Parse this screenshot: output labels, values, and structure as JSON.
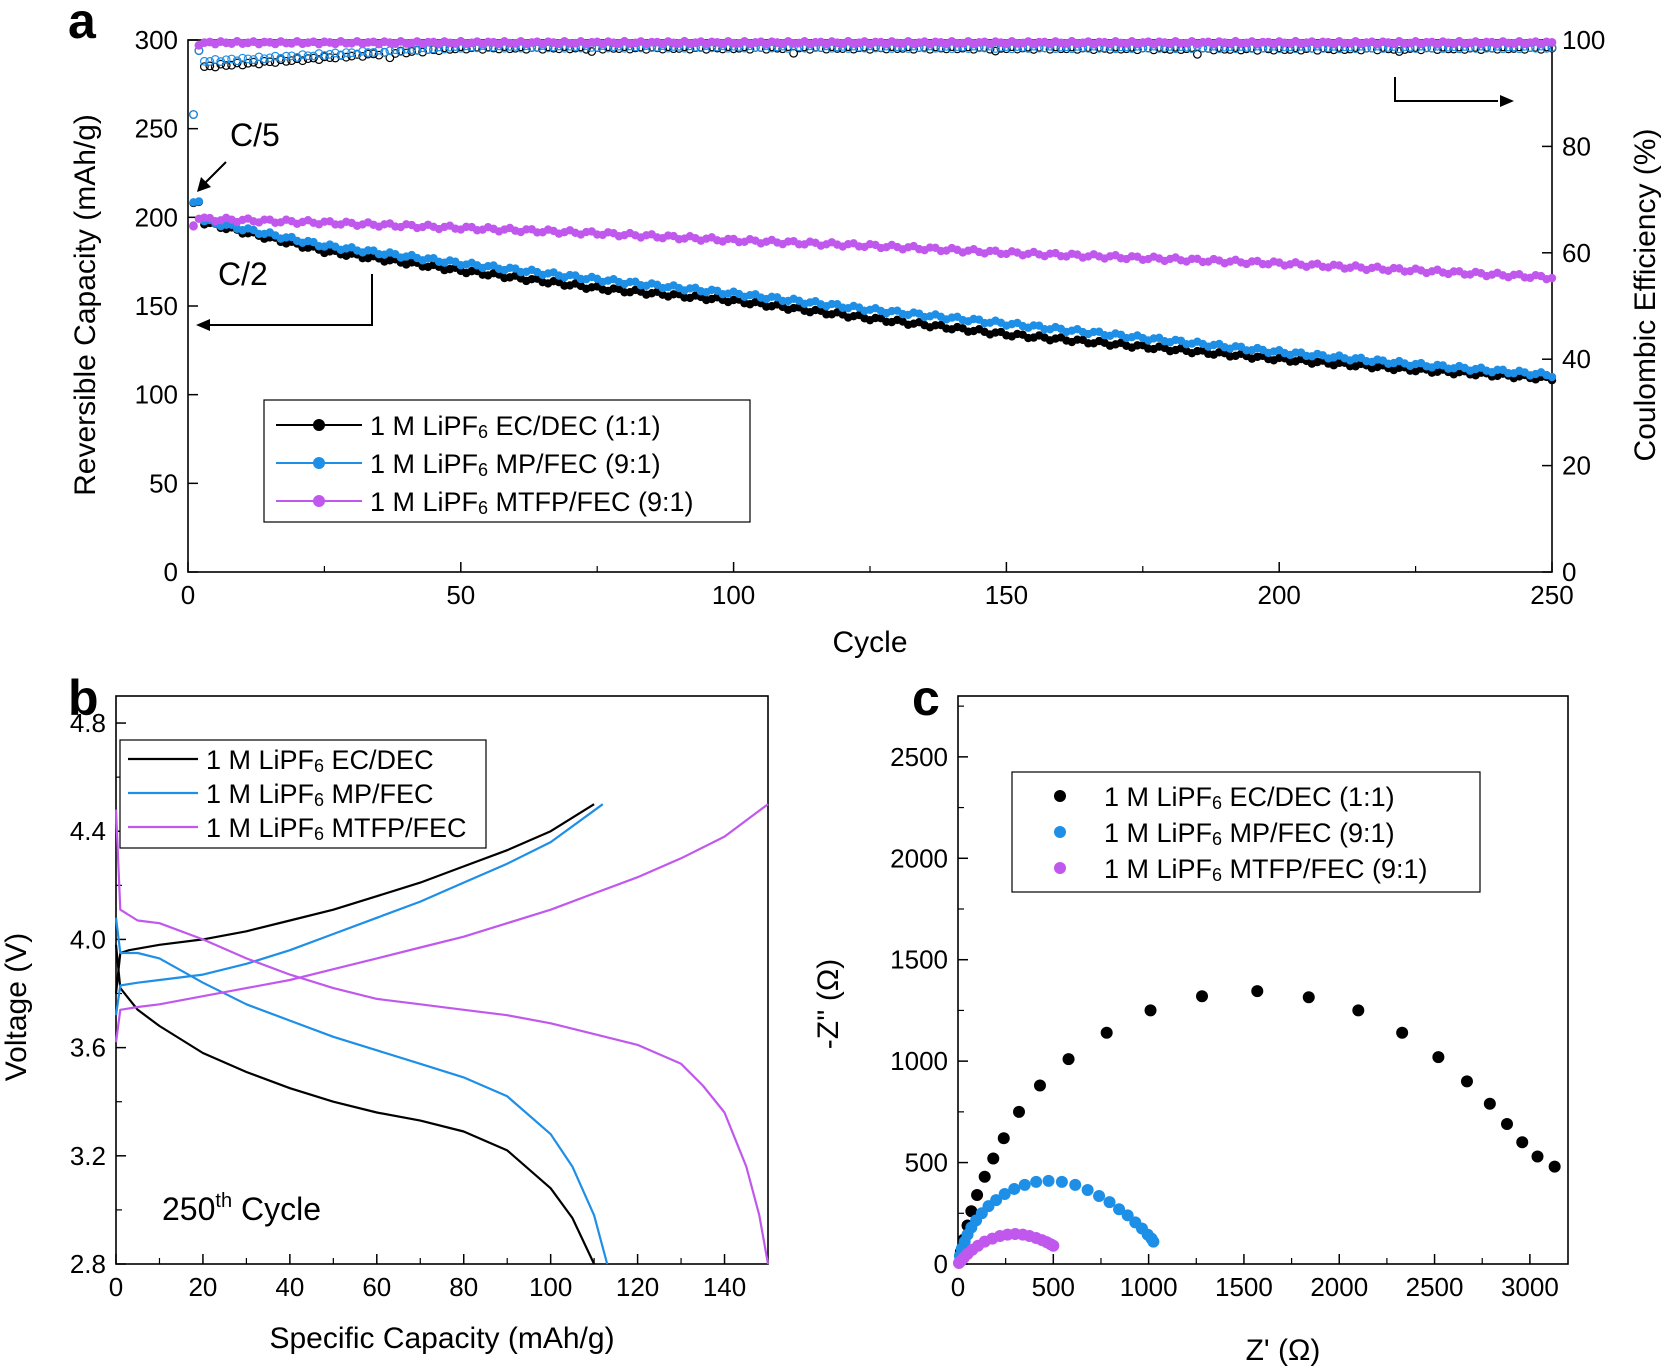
{
  "panel_labels": [
    "a",
    "b",
    "c"
  ],
  "colors": {
    "black": "#000000",
    "blue": "#1E8FE6",
    "purple": "#C158EE"
  },
  "chart_data": [
    {
      "panel": "a",
      "type": "scatter",
      "xlabel": "Cycle",
      "ylabel": "Reversible Capacity (mAh/g)",
      "y2label": "Coulombic Efficiency (%)",
      "xlim": [
        0,
        250
      ],
      "ylim": [
        0,
        300
      ],
      "y2lim": [
        0,
        100
      ],
      "xticks": [
        "0",
        "50",
        "100",
        "150",
        "200",
        "250"
      ],
      "yticks": [
        "0",
        "50",
        "100",
        "150",
        "200",
        "250",
        "300"
      ],
      "y2ticks": [
        "0",
        "20",
        "40",
        "60",
        "80",
        "100"
      ],
      "legend_position": "lower-left",
      "annotations": [
        {
          "text": "C/5",
          "arrow": "points to initial C/5 cycles",
          "axis": "left"
        },
        {
          "text": "C/2",
          "axis": "left"
        },
        {
          "arrow": "left",
          "meaning": "capacity series use left axis"
        },
        {
          "arrow": "right",
          "meaning": "coulombic efficiency uses right axis"
        }
      ],
      "series": [
        {
          "name": "1 M LiPF6 EC/DEC (1:1)",
          "color": "#000000",
          "capacity": {
            "x": [
              1,
              2,
              3,
              25,
              50,
              75,
              100,
              125,
              150,
              175,
              200,
              225,
              250
            ],
            "y": [
              207,
              209,
              197,
              181,
              170,
              160,
              153,
              143,
              134,
              127,
              120,
              114,
              109
            ]
          },
          "coulombic_efficiency": {
            "x": [
              1,
              2,
              3,
              50,
              100,
              150,
              200,
              250
            ],
            "y": [
              86,
              98,
              95,
              98.5,
              98.5,
              98.5,
              98.3,
              98.5
            ]
          }
        },
        {
          "name": "1 M LiPF6 MP/FEC (9:1)",
          "color": "#1E8FE6",
          "capacity": {
            "x": [
              1,
              2,
              3,
              25,
              50,
              75,
              100,
              125,
              150,
              175,
              200,
              225,
              250
            ],
            "y": [
              208,
              210,
              198,
              184,
              174,
              165,
              157,
              148,
              140,
              132,
              124,
              117,
              111
            ]
          },
          "coulombic_efficiency": {
            "x": [
              1,
              2,
              3,
              50,
              100,
              150,
              200,
              250
            ],
            "y": [
              86,
              98,
              96,
              98.7,
              98.7,
              98.6,
              98.6,
              98.6
            ]
          }
        },
        {
          "name": "1 M LiPF6 MTFP/FEC (9:1)",
          "color": "#C158EE",
          "capacity": {
            "x": [
              1,
              2,
              3,
              25,
              50,
              75,
              100,
              125,
              150,
              175,
              200,
              225,
              250
            ],
            "y": [
              196,
              200,
              199,
              197,
              194,
              191,
              187,
              184,
              180,
              177,
              174,
              170,
              166
            ]
          },
          "coulombic_efficiency": {
            "x": [
              1,
              2,
              3,
              50,
              100,
              150,
              200,
              250
            ],
            "y": [
              65,
              99,
              99.5,
              99.5,
              99.5,
              99.5,
              99.5,
              99.5
            ]
          }
        }
      ]
    },
    {
      "panel": "b",
      "type": "line",
      "xlabel": "Specific Capacity (mAh/g)",
      "ylabel": "Voltage (V)",
      "xlim": [
        0,
        150
      ],
      "ylim": [
        2.8,
        4.9
      ],
      "xticks": [
        "0",
        "20",
        "40",
        "60",
        "80",
        "100",
        "120",
        "140"
      ],
      "yticks": [
        "2.8",
        "3.2",
        "3.6",
        "4.0",
        "4.4",
        "4.8"
      ],
      "legend_position": "top-left",
      "annotation": "250",
      "annotation_sup": "th",
      "annotation_tail": "Cycle",
      "series": [
        {
          "name": "1 M LiPF6 EC/DEC",
          "color": "#000000",
          "charge": {
            "x": [
              0,
              1,
              3,
              10,
              20,
              30,
              40,
              50,
              60,
              70,
              80,
              90,
              100,
              110
            ],
            "y": [
              3.8,
              3.95,
              3.96,
              3.98,
              4.0,
              4.03,
              4.07,
              4.11,
              4.16,
              4.21,
              4.27,
              4.33,
              4.4,
              4.5
            ]
          },
          "discharge": {
            "x": [
              0,
              1,
              5,
              10,
              20,
              30,
              40,
              50,
              60,
              70,
              80,
              90,
              100,
              105,
              110
            ],
            "y": [
              3.98,
              3.82,
              3.74,
              3.68,
              3.58,
              3.51,
              3.45,
              3.4,
              3.36,
              3.33,
              3.29,
              3.22,
              3.08,
              2.97,
              2.8
            ]
          }
        },
        {
          "name": "1 M LiPF6 MP/FEC",
          "color": "#1E8FE6",
          "charge": {
            "x": [
              0,
              1,
              5,
              10,
              20,
              30,
              40,
              50,
              60,
              70,
              80,
              90,
              100,
              112
            ],
            "y": [
              3.72,
              3.83,
              3.84,
              3.85,
              3.87,
              3.91,
              3.96,
              4.02,
              4.08,
              4.14,
              4.21,
              4.28,
              4.36,
              4.5
            ]
          },
          "discharge": {
            "x": [
              0,
              1,
              5,
              10,
              20,
              30,
              40,
              50,
              60,
              70,
              80,
              90,
              100,
              105,
              110,
              113
            ],
            "y": [
              4.08,
              3.95,
              3.95,
              3.93,
              3.84,
              3.76,
              3.7,
              3.64,
              3.59,
              3.54,
              3.49,
              3.42,
              3.28,
              3.16,
              2.98,
              2.8
            ]
          }
        },
        {
          "name": "1 M LiPF6 MTFP/FEC",
          "color": "#C158EE",
          "charge": {
            "x": [
              0,
              1,
              5,
              10,
              20,
              30,
              40,
              50,
              60,
              70,
              80,
              90,
              100,
              110,
              120,
              130,
              140,
              150
            ],
            "y": [
              3.62,
              3.74,
              3.75,
              3.76,
              3.79,
              3.82,
              3.85,
              3.89,
              3.93,
              3.97,
              4.01,
              4.06,
              4.11,
              4.17,
              4.23,
              4.3,
              4.38,
              4.5
            ]
          },
          "discharge": {
            "x": [
              0,
              1,
              5,
              10,
              20,
              30,
              40,
              50,
              60,
              70,
              80,
              90,
              100,
              110,
              120,
              130,
              135,
              140,
              145,
              148,
              150
            ],
            "y": [
              4.48,
              4.11,
              4.07,
              4.06,
              4.0,
              3.93,
              3.87,
              3.82,
              3.78,
              3.76,
              3.74,
              3.72,
              3.69,
              3.65,
              3.61,
              3.54,
              3.46,
              3.36,
              3.16,
              2.98,
              2.8
            ]
          }
        }
      ]
    },
    {
      "panel": "c",
      "type": "scatter",
      "xlabel": "Z' (Ω)",
      "ylabel": "-Z'' (Ω)",
      "xlim": [
        0,
        3200
      ],
      "ylim": [
        0,
        2800
      ],
      "xticks": [
        "0",
        "500",
        "1000",
        "1500",
        "2000",
        "2500",
        "3000"
      ],
      "yticks": [
        "0",
        "500",
        "1000",
        "1500",
        "2000",
        "2500"
      ],
      "legend_position": "top-center",
      "series": [
        {
          "name": "1 M LiPF6 EC/DEC (1:1)",
          "color": "#000000",
          "x": [
            15,
            30,
            50,
            70,
            100,
            140,
            185,
            240,
            320,
            430,
            580,
            780,
            1010,
            1280,
            1570,
            1840,
            2100,
            2330,
            2520,
            2670,
            2790,
            2880,
            2960,
            3040,
            3130
          ],
          "y": [
            60,
            120,
            190,
            260,
            340,
            430,
            520,
            620,
            750,
            880,
            1010,
            1140,
            1250,
            1320,
            1345,
            1315,
            1250,
            1140,
            1020,
            900,
            790,
            690,
            600,
            530,
            480
          ]
        },
        {
          "name": "1 M LiPF6 MP/FEC (9:1)",
          "color": "#1E8FE6",
          "x": [
            10,
            20,
            35,
            50,
            70,
            95,
            125,
            160,
            200,
            245,
            295,
            350,
            410,
            475,
            545,
            615,
            680,
            740,
            795,
            845,
            890,
            930,
            965,
            995,
            1015,
            1025
          ],
          "y": [
            40,
            75,
            110,
            145,
            180,
            215,
            250,
            285,
            315,
            345,
            370,
            390,
            405,
            410,
            405,
            390,
            365,
            335,
            305,
            270,
            240,
            205,
            175,
            145,
            125,
            110
          ]
        },
        {
          "name": "1 M LiPF6 MTFP/FEC (9:1)",
          "color": "#C158EE",
          "x": [
            5,
            15,
            30,
            50,
            75,
            105,
            140,
            180,
            220,
            260,
            300,
            340,
            375,
            410,
            440,
            465,
            485,
            500
          ],
          "y": [
            5,
            15,
            30,
            50,
            70,
            90,
            110,
            125,
            138,
            145,
            148,
            145,
            138,
            128,
            118,
            108,
            98,
            90
          ]
        }
      ]
    }
  ]
}
